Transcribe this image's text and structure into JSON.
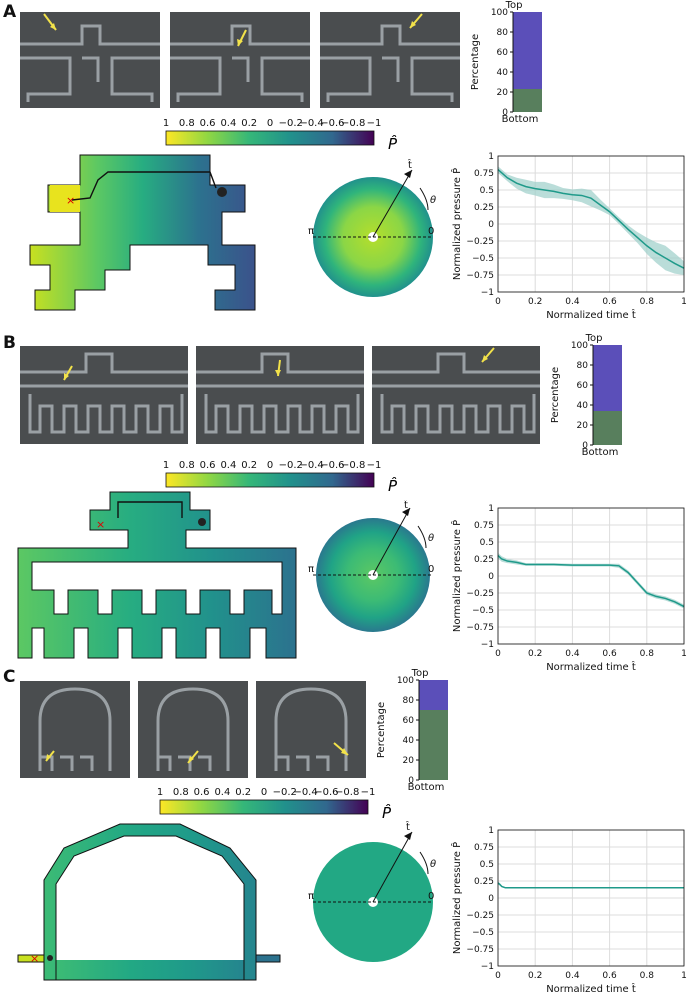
{
  "panels": [
    {
      "label": "A",
      "colorbar": {
        "ticks": [
          "1",
          "0.8",
          "0.6",
          "0.4",
          "0.2",
          "0",
          "−0.2",
          "−0.4",
          "−0.6",
          "−0.8",
          "−1"
        ],
        "symbol": "P̂"
      },
      "stacked_bar": {
        "top_label": "Top",
        "bottom_label": "Bottom",
        "ylabel": "Percentage",
        "yticks": [
          "0",
          "20",
          "40",
          "60",
          "80",
          "100"
        ],
        "bottom_percent": 23
      },
      "polar": {
        "left": "π",
        "right": "0",
        "t_label": "t̂",
        "theta": "θ"
      },
      "chart_data": {
        "type": "line",
        "x": [
          0,
          0.05,
          0.1,
          0.15,
          0.2,
          0.25,
          0.3,
          0.35,
          0.4,
          0.45,
          0.5,
          0.55,
          0.6,
          0.65,
          0.7,
          0.75,
          0.8,
          0.85,
          0.9,
          0.95,
          1.0
        ],
        "y": [
          0.8,
          0.68,
          0.6,
          0.55,
          0.52,
          0.5,
          0.48,
          0.45,
          0.43,
          0.42,
          0.38,
          0.28,
          0.18,
          0.05,
          -0.08,
          -0.2,
          -0.32,
          -0.42,
          -0.5,
          -0.58,
          -0.65
        ],
        "band": [
          0.05,
          0.05,
          0.08,
          0.1,
          0.1,
          0.12,
          0.1,
          0.08,
          0.08,
          0.1,
          0.12,
          0.08,
          0.05,
          0.05,
          0.06,
          0.08,
          0.12,
          0.15,
          0.18,
          0.15,
          0.1
        ],
        "xlabel": "Normalized time t̂",
        "ylabel": "Normalized pressure P̂",
        "xlim": [
          0,
          1
        ],
        "ylim": [
          -1,
          1
        ],
        "xticks": [
          "0",
          "0.2",
          "0.4",
          "0.6",
          "0.8",
          "1"
        ],
        "yticks": [
          "1",
          "0.75",
          "0.5",
          "0.25",
          "0",
          "−0.25",
          "−0.5",
          "−0.75",
          "−1"
        ]
      }
    },
    {
      "label": "B",
      "colorbar": {
        "ticks": [
          "1",
          "0.8",
          "0.6",
          "0.4",
          "0.2",
          "0",
          "−0.2",
          "−0.4",
          "−0.6",
          "−0.8",
          "−1"
        ],
        "symbol": "P̂"
      },
      "stacked_bar": {
        "top_label": "Top",
        "bottom_label": "Bottom",
        "ylabel": "Percentage",
        "yticks": [
          "0",
          "20",
          "40",
          "60",
          "80",
          "100"
        ],
        "bottom_percent": 34
      },
      "polar": {
        "left": "π",
        "right": "0",
        "t_label": "t̂",
        "theta": "θ"
      },
      "chart_data": {
        "type": "line",
        "x": [
          0,
          0.02,
          0.05,
          0.1,
          0.15,
          0.2,
          0.3,
          0.4,
          0.5,
          0.6,
          0.65,
          0.7,
          0.75,
          0.8,
          0.85,
          0.9,
          0.95,
          1.0
        ],
        "y": [
          0.3,
          0.25,
          0.22,
          0.2,
          0.17,
          0.17,
          0.17,
          0.16,
          0.16,
          0.16,
          0.15,
          0.05,
          -0.1,
          -0.25,
          -0.3,
          -0.33,
          -0.38,
          -0.45
        ],
        "band": [
          0.04,
          0.04,
          0.03,
          0.03,
          0.02,
          0.02,
          0.02,
          0.02,
          0.02,
          0.02,
          0.03,
          0.03,
          0.03,
          0.03,
          0.03,
          0.03,
          0.03,
          0.03
        ],
        "xlabel": "Normalized time t̂",
        "ylabel": "Normalized pressure P̂",
        "xlim": [
          0,
          1
        ],
        "ylim": [
          -1,
          1
        ],
        "xticks": [
          "0",
          "0.2",
          "0.4",
          "0.6",
          "0.8",
          "1"
        ],
        "yticks": [
          "1",
          "0.75",
          "0.5",
          "0.25",
          "0",
          "−0.25",
          "−0.5",
          "−0.75",
          "−1"
        ]
      }
    },
    {
      "label": "C",
      "colorbar": {
        "ticks": [
          "1",
          "0.8",
          "0.6",
          "0.4",
          "0.2",
          "0",
          "−0.2",
          "−0.4",
          "−0.6",
          "−0.8",
          "−1"
        ],
        "symbol": "P̂"
      },
      "stacked_bar": {
        "top_label": "Top",
        "bottom_label": "Bottom",
        "ylabel": "Percentage",
        "yticks": [
          "0",
          "20",
          "40",
          "60",
          "80",
          "100"
        ],
        "bottom_percent": 70
      },
      "polar": {
        "left": "π",
        "right": "0",
        "t_label": "t̂",
        "theta": "θ"
      },
      "chart_data": {
        "type": "line",
        "x": [
          0,
          0.01,
          0.02,
          0.04,
          0.1,
          0.2,
          0.4,
          0.6,
          0.8,
          1.0
        ],
        "y": [
          0.22,
          0.2,
          0.17,
          0.15,
          0.15,
          0.15,
          0.15,
          0.15,
          0.15,
          0.15
        ],
        "band": [
          0.02,
          0.02,
          0.01,
          0.01,
          0.01,
          0.01,
          0.01,
          0.01,
          0.01,
          0.01
        ],
        "xlabel": "Normalized time t̂",
        "ylabel": "Normalized pressure P̂",
        "xlim": [
          0,
          1
        ],
        "ylim": [
          -1,
          1
        ],
        "xticks": [
          "0",
          "0.2",
          "0.4",
          "0.6",
          "0.8",
          "1"
        ],
        "yticks": [
          "1",
          "0.75",
          "0.5",
          "0.25",
          "0",
          "−0.25",
          "−0.5",
          "−0.75",
          "−1"
        ]
      }
    }
  ]
}
